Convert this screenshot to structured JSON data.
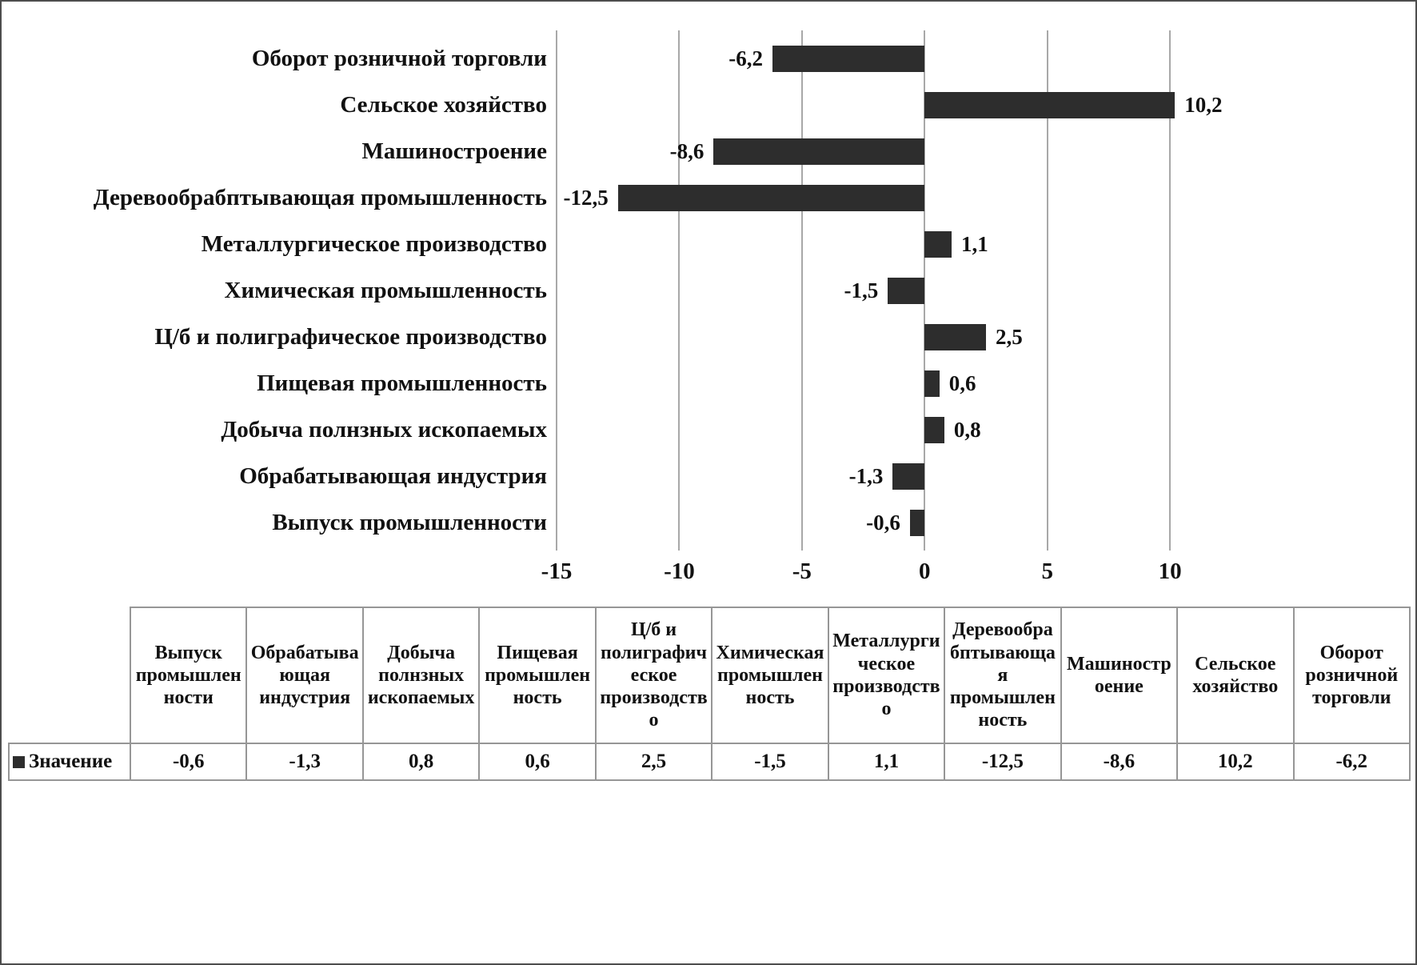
{
  "chart_data": {
    "type": "bar",
    "orientation": "horizontal",
    "title": "",
    "categories": [
      "Оборот розничной торговли",
      "Сельское хозяйство",
      "Машиностроение",
      "Деревообрабптывающая промышленность",
      "Металлургическое  производство",
      "Химическая промышленность",
      "Ц/б и полиграфическое производство",
      "Пищевая промышленность",
      "Добыча полнзных ископаемых",
      "Обрабатывающая индустрия",
      "Выпуск промышленности"
    ],
    "values": [
      -6.2,
      10.2,
      -8.6,
      -12.5,
      1.1,
      -1.5,
      2.5,
      0.6,
      0.8,
      -1.3,
      -0.6
    ],
    "value_labels": [
      "-6,2",
      "10,2",
      "-8,6",
      "-12,5",
      "1,1",
      "-1,5",
      "2,5",
      "0,6",
      "0,8",
      "-1,3",
      "-0,6"
    ],
    "x_ticks": [
      -15,
      -10,
      -5,
      0,
      5,
      10
    ],
    "x_tick_labels": [
      "-15",
      "-10",
      "-5",
      "0",
      "5",
      "10"
    ],
    "xlim": [
      -15,
      12.7
    ],
    "grid": true,
    "legend_position": "table-bottom",
    "series_name": "Значение",
    "bar_color": "#2d2d2d",
    "gridline_color": "#a8a8a8"
  },
  "table": {
    "row_label": "Значение",
    "columns": [
      "Выпуск промышленности",
      "Обрабатывающая индустрия",
      "Добыча полнзных ископаемых",
      "Пищевая промышленность",
      "Ц/б и полиграфическое производство",
      "Химическая промышленность",
      "Металлургическое производство",
      "Деревообрабптывающая промышленность",
      "Машиностроение",
      "Сельское хозяйство",
      "Оборот розничной торговли"
    ],
    "values": [
      "-0,6",
      "-1,3",
      "0,8",
      "0,6",
      "2,5",
      "-1,5",
      "1,1",
      "-12,5",
      "-8,6",
      "10,2",
      "-6,2"
    ]
  }
}
